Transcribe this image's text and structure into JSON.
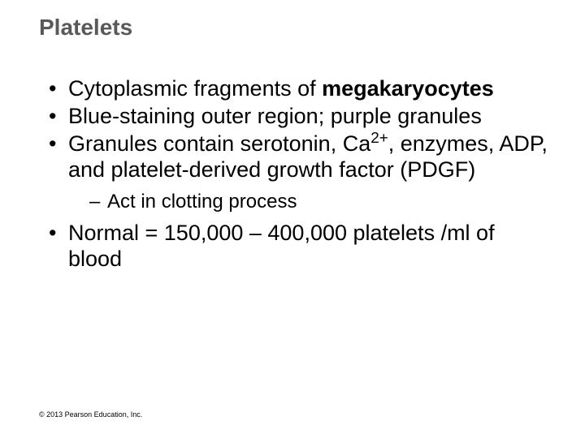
{
  "slide": {
    "title": "Platelets",
    "title_color": "#595959",
    "title_fontsize": 28,
    "body_fontsize": 27,
    "sub_fontsize": 24,
    "background_color": "#ffffff",
    "text_color": "#000000",
    "bullets": [
      {
        "pre": "Cytoplasmic fragments of ",
        "bold": "megakaryocytes",
        "post": ""
      },
      {
        "text": "Blue-staining outer region; purple granules"
      },
      {
        "pre": "Granules contain serotonin, Ca",
        "sup": "2+",
        "post": ", enzymes, ADP, and platelet-derived growth factor (PDGF)",
        "sub": [
          {
            "text": "Act in clotting process"
          }
        ]
      },
      {
        "text": "Normal = 150,000 – 400,000 platelets /ml of blood"
      }
    ],
    "copyright": "© 2013 Pearson Education, Inc."
  }
}
